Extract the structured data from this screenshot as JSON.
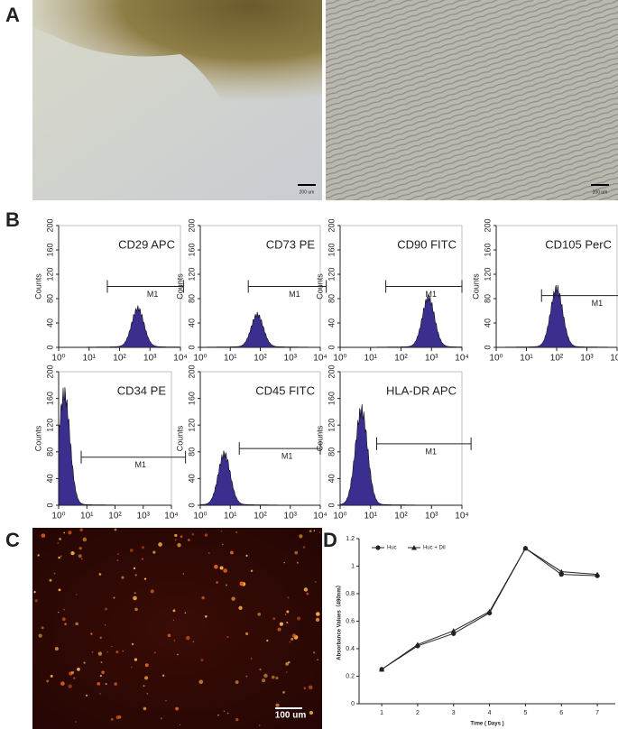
{
  "panel_labels": [
    "A",
    "B",
    "C",
    "D"
  ],
  "scale_bars": {
    "a_left": "200 um",
    "a_right": "200 um",
    "c": "100 um"
  },
  "flow": {
    "ylabel": "Counts",
    "gate_label": "M1",
    "xlim": [
      0,
      4
    ],
    "ylim": [
      0,
      200
    ],
    "yticks": [
      0,
      40,
      80,
      120,
      160,
      200
    ],
    "xticks": [
      {
        "value": 0,
        "label": "10⁰"
      },
      {
        "value": 1,
        "label": "10¹"
      },
      {
        "value": 2,
        "label": "10²"
      },
      {
        "value": 3,
        "label": "10³"
      },
      {
        "value": 4,
        "label": "10⁴"
      }
    ],
    "color": "#3a2f8f",
    "panels": [
      {
        "title": "CD29 APC",
        "peak_log10": 2.6,
        "peak_count": 62,
        "gate": [
          1.6,
          4.1
        ],
        "gate_count": 100
      },
      {
        "title": "CD73 PE",
        "peak_log10": 1.9,
        "peak_count": 52,
        "gate": [
          1.6,
          4.2
        ],
        "gate_count": 100
      },
      {
        "title": "CD90 FITC",
        "peak_log10": 2.9,
        "peak_count": 80,
        "gate": [
          1.5,
          4.0
        ],
        "gate_count": 100
      },
      {
        "title": "CD105 PerC",
        "peak_log10": 2.0,
        "peak_count": 95,
        "gate": [
          1.5,
          4.7
        ],
        "gate_count": 85
      },
      {
        "title": "CD34 PE",
        "peak_log10": 0.2,
        "peak_count": 165,
        "gate": [
          0.8,
          4.5
        ],
        "gate_count": 72
      },
      {
        "title": "CD45 FITC",
        "peak_log10": 0.8,
        "peak_count": 75,
        "gate": [
          1.3,
          4.0
        ],
        "gate_count": 85
      },
      {
        "title": "HLA-DR APC",
        "peak_log10": 0.7,
        "peak_count": 140,
        "gate": [
          1.2,
          4.3
        ],
        "gate_count": 92
      }
    ]
  },
  "chart_data": {
    "type": "line",
    "xlabel": "Time ( Days )",
    "ylabel": "Absorbance Values（490nm）",
    "x": [
      1,
      2,
      3,
      4,
      5,
      6,
      7
    ],
    "xlim": [
      0.37,
      7.5
    ],
    "xticks": [
      1,
      2,
      3,
      4,
      5,
      6,
      7
    ],
    "ylim": [
      0,
      1.2
    ],
    "yticks": [
      0,
      0.2,
      0.4,
      0.6,
      0.8,
      1,
      1.2
    ],
    "series": [
      {
        "name": "Huc",
        "color": "#222222",
        "marker": "circle",
        "values": [
          0.25,
          0.42,
          0.51,
          0.66,
          1.13,
          0.94,
          0.93
        ]
      },
      {
        "name": "Huc + DiI",
        "color": "#222222",
        "marker": "triangle",
        "values": [
          0.25,
          0.43,
          0.53,
          0.67,
          1.13,
          0.96,
          0.94
        ]
      }
    ]
  }
}
